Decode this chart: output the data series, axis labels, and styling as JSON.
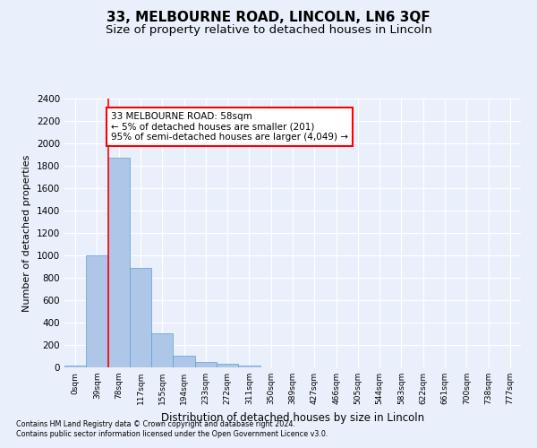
{
  "title_line1": "33, MELBOURNE ROAD, LINCOLN, LN6 3QF",
  "title_line2": "Size of property relative to detached houses in Lincoln",
  "xlabel": "Distribution of detached houses by size in Lincoln",
  "ylabel": "Number of detached properties",
  "bar_labels": [
    "0sqm",
    "39sqm",
    "78sqm",
    "117sqm",
    "155sqm",
    "194sqm",
    "233sqm",
    "272sqm",
    "311sqm",
    "350sqm",
    "389sqm",
    "427sqm",
    "466sqm",
    "505sqm",
    "544sqm",
    "583sqm",
    "622sqm",
    "661sqm",
    "700sqm",
    "738sqm",
    "777sqm"
  ],
  "bar_values": [
    20,
    1000,
    1870,
    890,
    305,
    105,
    50,
    35,
    20,
    0,
    0,
    0,
    0,
    0,
    0,
    0,
    0,
    0,
    0,
    0,
    0
  ],
  "bar_color": "#aec6e8",
  "bar_edgecolor": "#5a9fd4",
  "vline_x": 1.5,
  "vline_color": "red",
  "ylim": [
    0,
    2400
  ],
  "yticks": [
    0,
    200,
    400,
    600,
    800,
    1000,
    1200,
    1400,
    1600,
    1800,
    2000,
    2200,
    2400
  ],
  "annotation_text": "33 MELBOURNE ROAD: 58sqm\n← 5% of detached houses are smaller (201)\n95% of semi-detached houses are larger (4,049) →",
  "annotation_box_color": "white",
  "annotation_box_edgecolor": "red",
  "footer_line1": "Contains HM Land Registry data © Crown copyright and database right 2024.",
  "footer_line2": "Contains public sector information licensed under the Open Government Licence v3.0.",
  "bg_color": "#eaf0fb",
  "plot_bg_color": "#eaf0fb",
  "grid_color": "white",
  "title_fontsize": 11,
  "subtitle_fontsize": 9.5
}
